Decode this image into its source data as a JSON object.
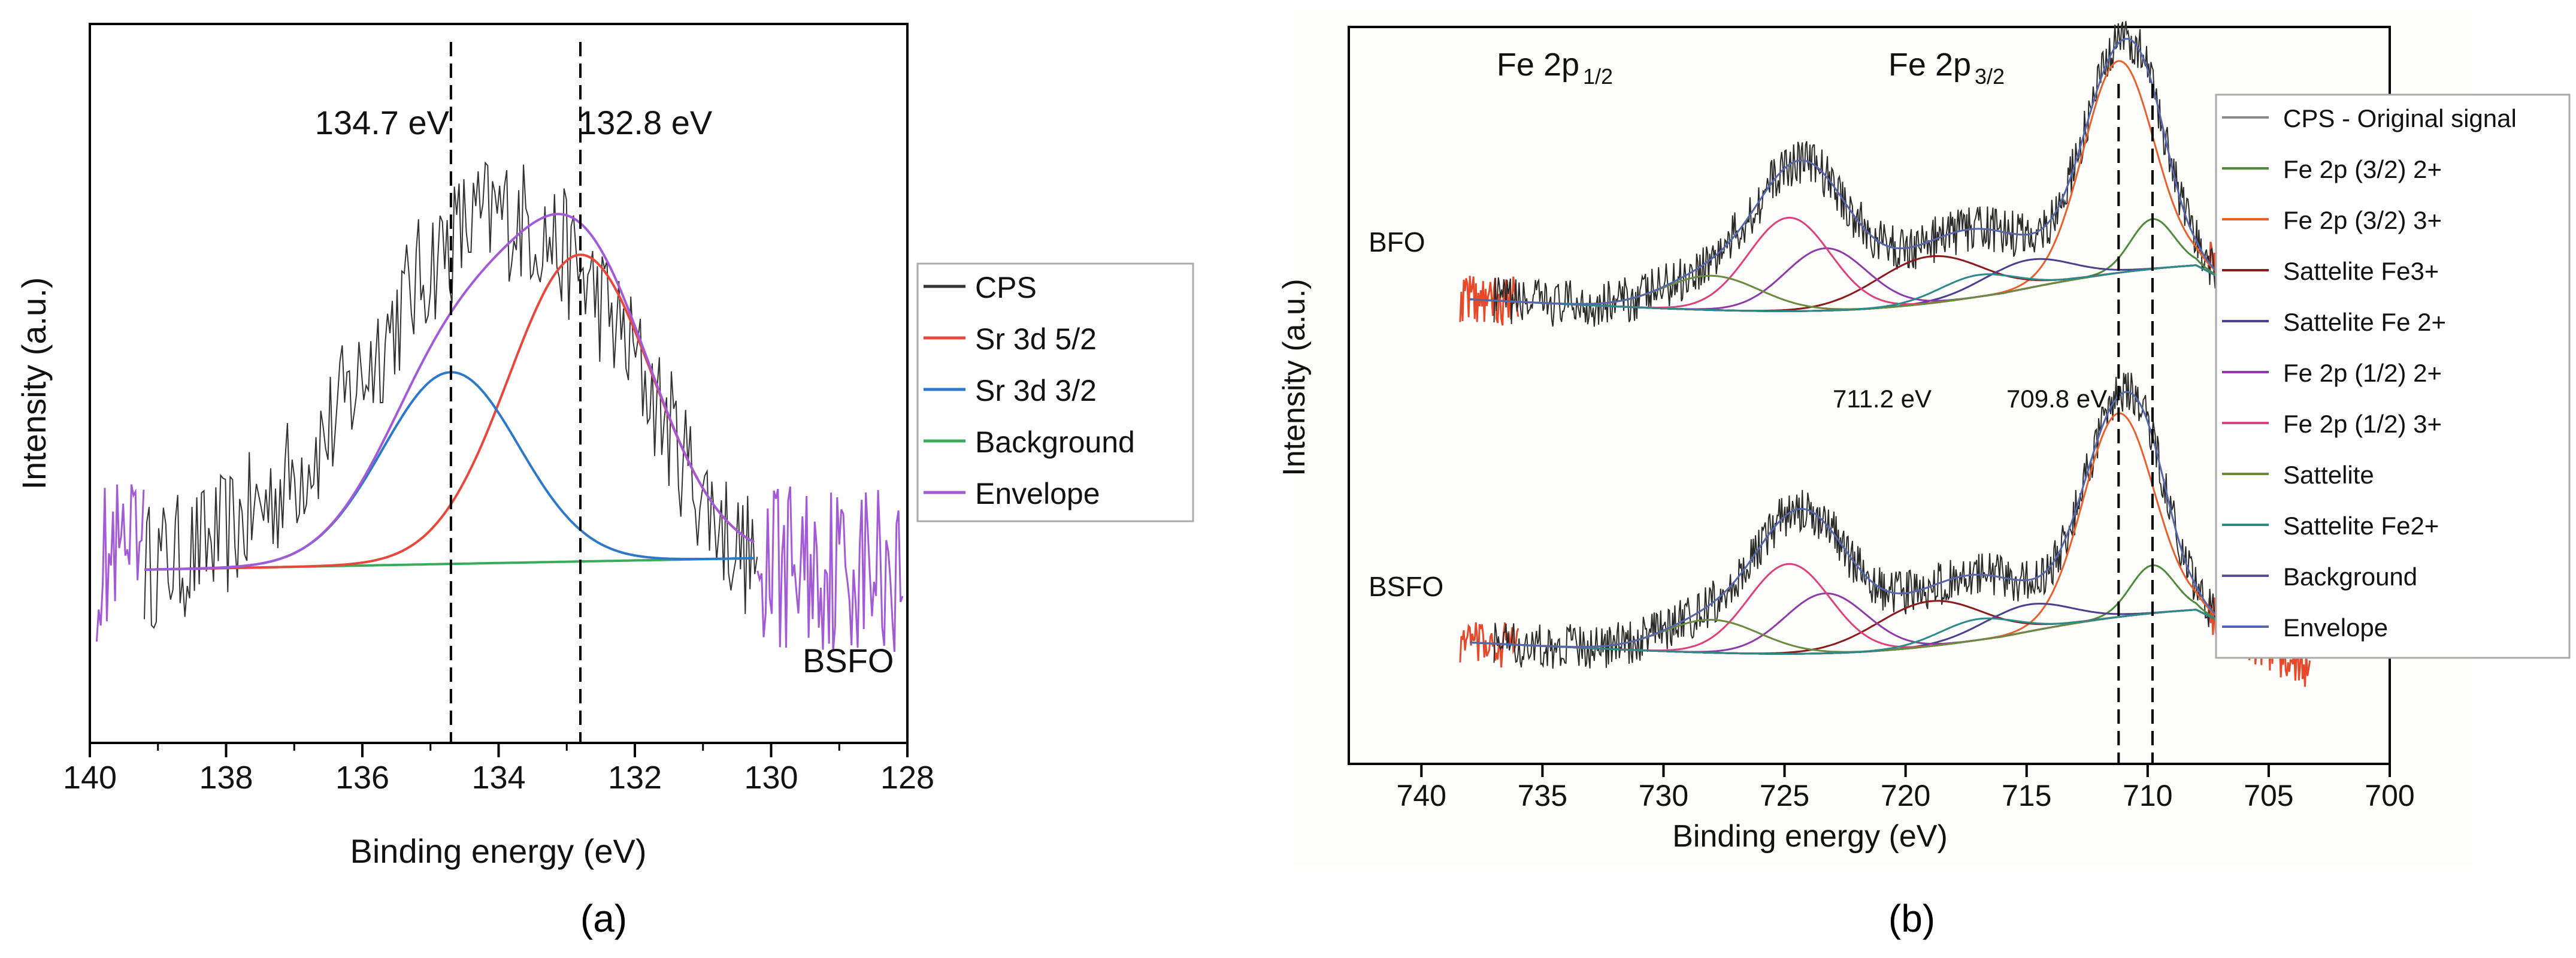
{
  "chart_data": [
    {
      "panel_label": "(a)",
      "type": "line",
      "title": "",
      "xlabel": "Binding energy (eV)",
      "ylabel": "Intensity (a.u.)",
      "xlim": [
        140,
        128
      ],
      "x_reversed": true,
      "x_ticks": [
        140,
        138,
        136,
        134,
        132,
        130,
        128
      ],
      "grid": false,
      "legend_position": "right, outside",
      "annotations": [
        {
          "text": "134.7 eV",
          "x": 134.7
        },
        {
          "text": "132.8 eV",
          "x": 132.8
        },
        {
          "text": "BSFO"
        }
      ],
      "reference_lines_x": [
        134.7,
        132.8
      ],
      "series": [
        {
          "name": "CPS",
          "color": "#333333",
          "style": "noisy",
          "x": [
            139.2,
            138.5,
            138,
            137.5,
            137,
            136.5,
            136,
            135.5,
            135,
            134.5,
            134,
            133.5,
            133,
            132.5,
            132,
            131.5,
            131,
            130.5,
            130.2
          ],
          "y": [
            0.38,
            0.7,
            1.2,
            1.9,
            2.8,
            3.9,
            5.4,
            6.9,
            8.3,
            9.2,
            9.6,
            9.3,
            8.5,
            7.3,
            5.8,
            4.0,
            2.2,
            0.9,
            0.5
          ]
        },
        {
          "name": "Sr 3d 5/2",
          "color": "#e8473c",
          "style": "gaussian",
          "center": 132.8,
          "amplitude": 8.0,
          "sigma": 1.05
        },
        {
          "name": "Sr 3d 3/2",
          "color": "#2d78c8",
          "style": "gaussian",
          "center": 134.7,
          "amplitude": 5.0,
          "sigma": 1.0
        },
        {
          "name": "Background",
          "color": "#3aaa5c",
          "style": "line",
          "x": [
            139.2,
            130.2
          ],
          "y": [
            0.3,
            0.6
          ]
        },
        {
          "name": "Envelope",
          "color": "#a35ad6",
          "style": "sum"
        }
      ]
    },
    {
      "panel_label": "(b)",
      "type": "line",
      "title": "",
      "xlabel": "Binding energy (eV)",
      "ylabel": "Intensity (a.u.)",
      "xlim": [
        743,
        700
      ],
      "x_reversed": true,
      "x_ticks": [
        740,
        735,
        730,
        725,
        720,
        715,
        710,
        705,
        700
      ],
      "grid": false,
      "legend_position": "right, outside",
      "annotations": [
        {
          "text": "Fe 2p",
          "subscript": "1/2"
        },
        {
          "text": "Fe 2p",
          "subscript": "3/2"
        },
        {
          "text": "711.2 eV",
          "x": 711.2
        },
        {
          "text": "709.8 eV",
          "x": 709.8
        },
        {
          "text": "BFO"
        },
        {
          "text": "BSFO"
        }
      ],
      "reference_lines_x": [
        711.2,
        709.8
      ],
      "samples": [
        "BFO",
        "BSFO"
      ],
      "series": [
        {
          "name": "CPS - Original signal",
          "color": "#8a8a8a"
        },
        {
          "name": "Fe 2p (3/2) 2+",
          "color": "#4e8a3a",
          "center": 709.8
        },
        {
          "name": "Fe 2p (3/2) 3+",
          "color": "#e8602c",
          "center": 711.2
        },
        {
          "name": "Sattelite Fe3+",
          "color": "#8b1a1a",
          "center": 719.0
        },
        {
          "name": "Sattelite Fe 2+",
          "color": "#4b3f8f",
          "center": 715.0
        },
        {
          "name": "Fe 2p (1/2) 2+",
          "color": "#8e3aa8",
          "center": 723.3
        },
        {
          "name": "Fe 2p (1/2) 3+",
          "color": "#e0407a",
          "center": 724.8
        },
        {
          "name": "Sattelite",
          "color": "#6a8a3e",
          "center": 728.0
        },
        {
          "name": "Sattelite Fe2+",
          "color": "#2c8a8a",
          "center": 717.0
        },
        {
          "name": "Background",
          "color": "#5a4aa0"
        },
        {
          "name": "Envelope",
          "color": "#5566aa"
        }
      ]
    }
  ]
}
